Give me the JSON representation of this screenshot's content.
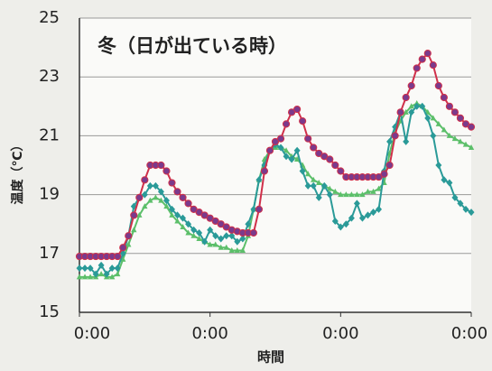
{
  "chart_data": {
    "type": "line",
    "annotation": "冬（日が出ている時）",
    "xlabel": "時間",
    "ylabel": "温度（℃）",
    "x": [
      0,
      1,
      2,
      3,
      4,
      5,
      6,
      7,
      8,
      9,
      10,
      11,
      12,
      13,
      14,
      15,
      16,
      17,
      18,
      19,
      20,
      21,
      22,
      23,
      24,
      25,
      26,
      27,
      28,
      29,
      30,
      31,
      32,
      33,
      34,
      35,
      36,
      37,
      38,
      39,
      40,
      41,
      42,
      43,
      44,
      45,
      46,
      47,
      48,
      49,
      50,
      51,
      52,
      53,
      54,
      55,
      56,
      57,
      58,
      59,
      60,
      61,
      62,
      63,
      64,
      65,
      66,
      67,
      68,
      69,
      70,
      71,
      72
    ],
    "xlim": [
      0,
      72
    ],
    "xticks": [
      {
        "value": 0,
        "label": "0:00"
      },
      {
        "value": 24,
        "label": "0:00"
      },
      {
        "value": 48,
        "label": "0:00"
      },
      {
        "value": 72,
        "label": "0:00"
      }
    ],
    "ylim": [
      15,
      25
    ],
    "yticks": [
      15,
      17,
      19,
      21,
      23,
      25
    ],
    "grid": true,
    "series": [
      {
        "color": "#d0304a",
        "marker_color": "#7b3a8c",
        "marker": "circle",
        "values": [
          16.9,
          16.9,
          16.9,
          16.9,
          16.9,
          16.9,
          16.9,
          16.9,
          17.2,
          17.6,
          18.3,
          18.9,
          19.5,
          20.0,
          20.0,
          20.0,
          19.8,
          19.4,
          19.1,
          18.9,
          18.7,
          18.5,
          18.4,
          18.3,
          18.2,
          18.1,
          18.0,
          17.9,
          17.8,
          17.75,
          17.7,
          17.7,
          17.7,
          18.5,
          19.8,
          20.5,
          20.8,
          20.9,
          21.4,
          21.8,
          21.9,
          21.5,
          20.9,
          20.6,
          20.4,
          20.3,
          20.2,
          20.0,
          19.8,
          19.6,
          19.6,
          19.6,
          19.6,
          19.6,
          19.6,
          19.6,
          19.7,
          20.0,
          21.0,
          21.8,
          22.3,
          22.7,
          23.3,
          23.6,
          23.8,
          23.4,
          22.7,
          22.3,
          22.0,
          21.8,
          21.6,
          21.4,
          21.3
        ]
      },
      {
        "color": "#2a9a98",
        "marker_color": "#2a9a98",
        "marker": "diamond",
        "values": [
          16.5,
          16.5,
          16.5,
          16.3,
          16.6,
          16.3,
          16.5,
          16.5,
          17.0,
          17.6,
          18.6,
          18.9,
          19.0,
          19.3,
          19.3,
          19.1,
          18.8,
          18.5,
          18.3,
          18.2,
          18.0,
          17.8,
          17.7,
          17.4,
          17.8,
          17.6,
          17.5,
          17.6,
          17.6,
          17.4,
          17.5,
          18.0,
          18.5,
          19.5,
          20.0,
          20.5,
          20.7,
          20.6,
          20.3,
          20.2,
          20.5,
          19.8,
          19.3,
          19.3,
          18.9,
          19.3,
          19.0,
          18.1,
          17.9,
          18.0,
          18.2,
          18.7,
          18.2,
          18.3,
          18.4,
          18.5,
          19.8,
          20.8,
          21.3,
          21.8,
          20.8,
          21.8,
          22.0,
          22.0,
          21.6,
          21.0,
          20.0,
          19.5,
          19.4,
          18.9,
          18.7,
          18.5,
          18.4
        ]
      },
      {
        "color": "#5cbf6a",
        "marker_color": "#5cbf6a",
        "marker": "triangle",
        "values": [
          16.2,
          16.2,
          16.2,
          16.2,
          16.3,
          16.2,
          16.2,
          16.3,
          16.8,
          17.3,
          17.8,
          18.3,
          18.6,
          18.8,
          18.9,
          18.8,
          18.6,
          18.3,
          18.1,
          17.9,
          17.7,
          17.6,
          17.5,
          17.4,
          17.3,
          17.3,
          17.2,
          17.2,
          17.1,
          17.1,
          17.1,
          17.6,
          18.5,
          19.5,
          20.2,
          20.5,
          20.6,
          20.6,
          20.5,
          20.3,
          20.2,
          20.0,
          19.7,
          19.5,
          19.4,
          19.3,
          19.2,
          19.1,
          19.0,
          19.0,
          19.0,
          19.0,
          19.0,
          19.1,
          19.1,
          19.2,
          19.4,
          20.4,
          21.1,
          21.5,
          21.8,
          22.0,
          22.1,
          22.0,
          21.8,
          21.6,
          21.4,
          21.2,
          21.0,
          20.9,
          20.8,
          20.7,
          20.6
        ]
      }
    ]
  }
}
